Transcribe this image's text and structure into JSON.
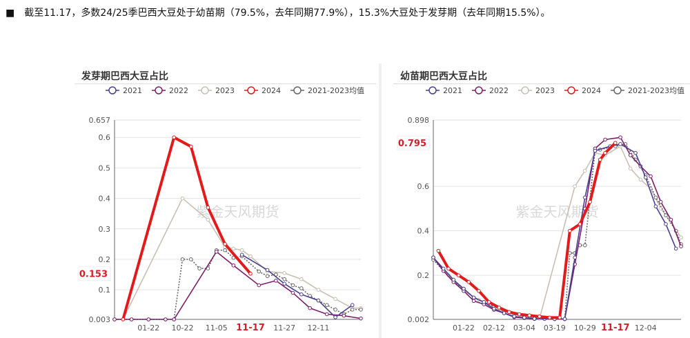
{
  "headline": {
    "bullet": "■",
    "text": "截至11.17，多数24/25季巴西大豆处于幼苗期（79.5%，去年同期77.9%），15.3%大豆处于发芽期（去年同期15.5%）。"
  },
  "watermark": "紫金天风期货",
  "colors": {
    "2021": "#4a3f8f",
    "2022": "#7b1f6a",
    "2023": "#c9bfb3",
    "2024": "#e31a1c",
    "avg": "#666666"
  },
  "chart_data": [
    {
      "type": "line",
      "title": "发芽期巴西大豆占比",
      "legend": [
        "2021",
        "2022",
        "2023",
        "2024",
        "2021-2023均值"
      ],
      "legend_position": "top",
      "ylim": [
        0.003,
        0.657
      ],
      "yticks": [
        0.003,
        0.1,
        0.2,
        0.3,
        0.4,
        0.5,
        0.6,
        0.657
      ],
      "highlight_value": "0.153",
      "n": 30,
      "xticks": [
        {
          "i": 4,
          "label": "01-22"
        },
        {
          "i": 8,
          "label": "10-22"
        },
        {
          "i": 12,
          "label": "11-05"
        },
        {
          "i": 16,
          "label": "11-17",
          "hl": true
        },
        {
          "i": 20,
          "label": "11-27"
        },
        {
          "i": 24,
          "label": "12-11"
        }
      ],
      "series": [
        {
          "name": "2023",
          "key": "2023",
          "points": [
            [
              0,
              0.003
            ],
            [
              1,
              0.003
            ],
            [
              8,
              0.4
            ],
            [
              11,
              0.33
            ],
            [
              13,
              0.24
            ],
            [
              14,
              0.235
            ],
            [
              15,
              0.23
            ],
            [
              16,
              0.21
            ],
            [
              18,
              0.16
            ],
            [
              20,
              0.155
            ],
            [
              22,
              0.135
            ],
            [
              24,
              0.1
            ],
            [
              26,
              0.07
            ],
            [
              28,
              0.04
            ],
            [
              29,
              0.04
            ]
          ]
        },
        {
          "name": "2021-2023均值",
          "key": "avg",
          "dash": true,
          "points": [
            [
              0,
              0.003
            ],
            [
              2,
              0.003
            ],
            [
              4,
              0.003
            ],
            [
              6,
              0.003
            ],
            [
              7,
              0.003
            ],
            [
              8,
              0.2
            ],
            [
              9,
              0.2
            ],
            [
              10,
              0.17
            ],
            [
              11,
              0.17
            ],
            [
              12,
              0.23
            ],
            [
              13,
              0.23
            ],
            [
              14,
              0.205
            ],
            [
              15,
              0.21
            ],
            [
              17,
              0.16
            ],
            [
              18,
              0.145
            ],
            [
              19,
              0.15
            ],
            [
              20,
              0.135
            ],
            [
              21,
              0.115
            ],
            [
              22,
              0.105
            ],
            [
              23,
              0.08
            ],
            [
              24,
              0.065
            ],
            [
              25,
              0.05
            ],
            [
              26,
              0.035
            ],
            [
              27,
              0.02
            ],
            [
              28,
              0.035
            ],
            [
              29,
              0.035
            ]
          ]
        },
        {
          "name": "2022",
          "key": "2022",
          "points": [
            [
              0,
              0.003
            ],
            [
              2,
              0.003
            ],
            [
              4,
              0.003
            ],
            [
              6,
              0.003
            ],
            [
              7,
              0.003
            ],
            [
              12,
              0.225
            ],
            [
              14,
              0.18
            ],
            [
              17,
              0.115
            ],
            [
              19,
              0.13
            ],
            [
              21,
              0.09
            ],
            [
              23,
              0.04
            ],
            [
              25,
              0.02
            ],
            [
              27,
              0.015
            ],
            [
              29,
              0.006
            ]
          ]
        },
        {
          "name": "2021",
          "key": "2021",
          "points": [
            [
              15,
              0.215
            ],
            [
              18,
              0.165
            ],
            [
              20,
              0.12
            ],
            [
              22,
              0.085
            ],
            [
              24,
              0.065
            ],
            [
              26,
              0.01
            ],
            [
              28,
              0.05
            ]
          ]
        },
        {
          "name": "2024",
          "key": "2024",
          "width": 4,
          "points": [
            [
              1,
              0.003
            ],
            [
              7,
              0.6
            ],
            [
              9,
              0.57
            ],
            [
              11,
              0.37
            ],
            [
              13,
              0.25
            ],
            [
              16,
              0.153
            ]
          ]
        }
      ]
    },
    {
      "type": "line",
      "title": "幼苗期巴西大豆占比",
      "legend": [
        "2021",
        "2022",
        "2023",
        "2024",
        "2021-2023均值"
      ],
      "legend_position": "top",
      "ylim": [
        0.002,
        0.898
      ],
      "yticks": [
        0.002,
        0.2,
        0.4,
        0.6,
        0.898
      ],
      "highlight_value": "0.795",
      "n": 50,
      "xticks": [
        {
          "i": 6,
          "label": "01-22"
        },
        {
          "i": 12,
          "label": "02-12"
        },
        {
          "i": 18,
          "label": "03-04"
        },
        {
          "i": 24,
          "label": "03-19"
        },
        {
          "i": 30,
          "label": "10-29"
        },
        {
          "i": 36,
          "label": "11-17",
          "hl": true
        },
        {
          "i": 42,
          "label": "12-04"
        }
      ],
      "series": [
        {
          "name": "2023",
          "key": "2023",
          "points": [
            [
              0,
              0.28
            ],
            [
              3,
              0.2
            ],
            [
              6,
              0.13
            ],
            [
              9,
              0.09
            ],
            [
              12,
              0.05
            ],
            [
              15,
              0.03
            ],
            [
              18,
              0.015
            ],
            [
              21,
              0.005
            ],
            [
              28,
              0.6
            ],
            [
              30,
              0.67
            ],
            [
              32,
              0.75
            ],
            [
              34,
              0.74
            ],
            [
              37,
              0.78
            ],
            [
              39,
              0.68
            ],
            [
              41,
              0.63
            ],
            [
              43,
              0.59
            ],
            [
              45,
              0.5
            ],
            [
              47,
              0.44
            ],
            [
              49,
              0.37
            ]
          ]
        },
        {
          "name": "2021-2023均值",
          "key": "avg",
          "dash": true,
          "points": [
            [
              0,
              0.27
            ],
            [
              2,
              0.22
            ],
            [
              4,
              0.17
            ],
            [
              6,
              0.14
            ],
            [
              8,
              0.1
            ],
            [
              10,
              0.08
            ],
            [
              12,
              0.06
            ],
            [
              14,
              0.04
            ],
            [
              16,
              0.025
            ],
            [
              18,
              0.015
            ],
            [
              20,
              0.01
            ],
            [
              22,
              0.006
            ],
            [
              24,
              0.005
            ],
            [
              26,
              0.004
            ],
            [
              27,
              0.3
            ],
            [
              28,
              0.3
            ],
            [
              29,
              0.335
            ],
            [
              30,
              0.335
            ],
            [
              32,
              0.76
            ],
            [
              33,
              0.765
            ],
            [
              35,
              0.775
            ],
            [
              36,
              0.78
            ],
            [
              38,
              0.79
            ],
            [
              40,
              0.72
            ],
            [
              42,
              0.65
            ],
            [
              44,
              0.55
            ],
            [
              46,
              0.47
            ],
            [
              48,
              0.4
            ],
            [
              49,
              0.34
            ]
          ]
        },
        {
          "name": "2022",
          "key": "2022",
          "points": [
            [
              0,
              0.28
            ],
            [
              2,
              0.22
            ],
            [
              4,
              0.17
            ],
            [
              6,
              0.13
            ],
            [
              8,
              0.085
            ],
            [
              10,
              0.07
            ],
            [
              12,
              0.045
            ],
            [
              14,
              0.03
            ],
            [
              16,
              0.012
            ],
            [
              18,
              0.008
            ],
            [
              20,
              0.004
            ],
            [
              22,
              0.004
            ],
            [
              24,
              0.003
            ],
            [
              26,
              0.003
            ],
            [
              28,
              0.25
            ],
            [
              30,
              0.5
            ],
            [
              32,
              0.77
            ],
            [
              34,
              0.81
            ],
            [
              37,
              0.82
            ],
            [
              39,
              0.74
            ],
            [
              41,
              0.69
            ],
            [
              43,
              0.645
            ],
            [
              45,
              0.53
            ],
            [
              47,
              0.45
            ],
            [
              49,
              0.33
            ]
          ]
        },
        {
          "name": "2021",
          "key": "2021",
          "points": [
            [
              0,
              0.28
            ],
            [
              2,
              0.23
            ],
            [
              4,
              0.18
            ],
            [
              6,
              0.14
            ],
            [
              8,
              0.1
            ],
            [
              10,
              0.08
            ],
            [
              12,
              0.05
            ],
            [
              14,
              0.03
            ],
            [
              16,
              0.015
            ],
            [
              18,
              0.01
            ],
            [
              20,
              0.005
            ],
            [
              24,
              0.004
            ],
            [
              26,
              0.004
            ],
            [
              28,
              0.28
            ],
            [
              30,
              0.55
            ],
            [
              32,
              0.76
            ],
            [
              35,
              0.78
            ],
            [
              37,
              0.79
            ],
            [
              40,
              0.75
            ],
            [
              42,
              0.64
            ],
            [
              44,
              0.51
            ],
            [
              46,
              0.43
            ],
            [
              48,
              0.32
            ]
          ]
        },
        {
          "name": "2024",
          "key": "2024",
          "width": 4,
          "points": [
            [
              1,
              0.31
            ],
            [
              3,
              0.23
            ],
            [
              5,
              0.2
            ],
            [
              7,
              0.17
            ],
            [
              9,
              0.13
            ],
            [
              11,
              0.08
            ],
            [
              13,
              0.055
            ],
            [
              15,
              0.035
            ],
            [
              17,
              0.025
            ],
            [
              19,
              0.02
            ],
            [
              21,
              0.015
            ],
            [
              23,
              0.01
            ],
            [
              25,
              0.01
            ],
            [
              27,
              0.4
            ],
            [
              29,
              0.43
            ],
            [
              31,
              0.53
            ],
            [
              33,
              0.72
            ],
            [
              34,
              0.75
            ],
            [
              36,
              0.795
            ]
          ]
        }
      ]
    }
  ]
}
